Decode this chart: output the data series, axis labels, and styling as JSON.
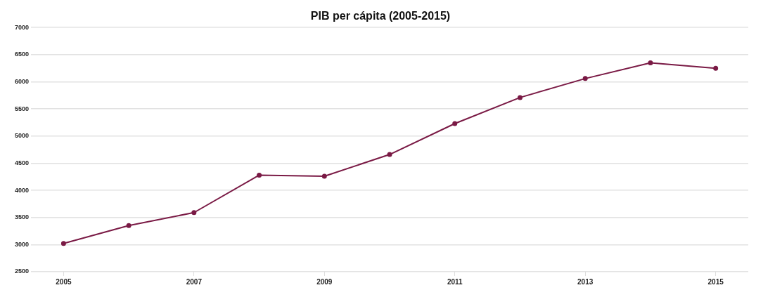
{
  "chart_data": {
    "type": "line",
    "title": "PIB per cápita (2005-2015)",
    "x": [
      2005,
      2006,
      2007,
      2008,
      2009,
      2010,
      2011,
      2012,
      2013,
      2014,
      2015
    ],
    "series": [
      {
        "color": "#7a1a45",
        "values": [
          3020,
          3350,
          3590,
          4280,
          4260,
          4660,
          5230,
          5710,
          6060,
          6350,
          6250
        ]
      }
    ],
    "xlim": [
      2004.5,
      2015.5
    ],
    "xticks": [
      2005,
      2007,
      2009,
      2011,
      2013,
      2015
    ],
    "ylim": [
      2500,
      7000
    ],
    "yticks": [
      2500,
      3000,
      3500,
      4000,
      4500,
      5000,
      5500,
      6000,
      6500,
      7000
    ],
    "grid": "y",
    "legend": false,
    "marker": "circle",
    "line_style": "solid"
  }
}
